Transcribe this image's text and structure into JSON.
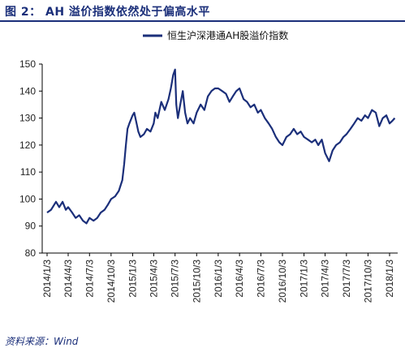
{
  "header": {
    "title": "图 2： AH 溢价指数依然处于偏高水平"
  },
  "footer": {
    "source": "资料来源：Wind"
  },
  "chart_data": {
    "type": "line",
    "title": "",
    "xlabel": "",
    "ylabel": "",
    "ylim": [
      80,
      150
    ],
    "yticks": [
      80,
      90,
      100,
      110,
      120,
      130,
      140,
      150
    ],
    "xticks": [
      "2014/1/3",
      "2014/4/3",
      "2014/7/3",
      "2014/10/3",
      "2015/1/3",
      "2015/4/3",
      "2015/7/3",
      "2015/10/3",
      "2016/1/3",
      "2016/4/3",
      "2016/7/3",
      "2016/10/3",
      "2017/1/3",
      "2017/4/3",
      "2017/7/3",
      "2017/10/3",
      "2018/1/3"
    ],
    "legend": "top-center",
    "grid": false,
    "colors": {
      "series": "#1b2f7a",
      "title": "#1b2f7a"
    },
    "series": [
      {
        "name": "恒生沪深港通AH股溢价指数",
        "x": [
          "2014/1/3",
          "2014/1/20",
          "2014/2/10",
          "2014/2/24",
          "2014/3/10",
          "2014/3/24",
          "2014/4/3",
          "2014/4/20",
          "2014/5/5",
          "2014/5/20",
          "2014/6/5",
          "2014/6/20",
          "2014/7/3",
          "2014/7/20",
          "2014/8/5",
          "2014/8/20",
          "2014/9/5",
          "2014/9/20",
          "2014/10/3",
          "2014/10/20",
          "2014/11/5",
          "2014/11/20",
          "2014/11/28",
          "2014/12/5",
          "2014/12/12",
          "2014/12/20",
          "2015/1/3",
          "2015/1/10",
          "2015/1/20",
          "2015/1/27",
          "2015/2/5",
          "2015/2/20",
          "2015/3/5",
          "2015/3/20",
          "2015/4/3",
          "2015/4/10",
          "2015/4/20",
          "2015/5/5",
          "2015/5/20",
          "2015/6/5",
          "2015/6/15",
          "2015/6/25",
          "2015/7/3",
          "2015/7/8",
          "2015/7/15",
          "2015/7/25",
          "2015/8/5",
          "2015/8/15",
          "2015/8/25",
          "2015/9/5",
          "2015/9/20",
          "2015/10/3",
          "2015/10/20",
          "2015/11/5",
          "2015/11/20",
          "2015/12/5",
          "2015/12/20",
          "2016/1/3",
          "2016/1/20",
          "2016/2/5",
          "2016/2/20",
          "2016/3/5",
          "2016/3/20",
          "2016/4/3",
          "2016/4/20",
          "2016/5/5",
          "2016/5/20",
          "2016/6/5",
          "2016/6/20",
          "2016/7/3",
          "2016/7/20",
          "2016/8/5",
          "2016/8/20",
          "2016/9/5",
          "2016/9/20",
          "2016/10/3",
          "2016/10/20",
          "2016/11/5",
          "2016/11/20",
          "2016/12/5",
          "2016/12/20",
          "2017/1/3",
          "2017/1/20",
          "2017/2/5",
          "2017/2/20",
          "2017/3/5",
          "2017/3/20",
          "2017/4/3",
          "2017/4/20",
          "2017/5/5",
          "2017/5/20",
          "2017/6/5",
          "2017/6/20",
          "2017/7/3",
          "2017/7/20",
          "2017/8/5",
          "2017/8/20",
          "2017/9/5",
          "2017/9/20",
          "2017/10/3",
          "2017/10/20",
          "2017/11/5",
          "2017/11/20",
          "2017/12/5",
          "2017/12/20",
          "2018/1/3",
          "2018/1/15",
          "2018/1/25"
        ],
        "values": [
          95,
          96,
          99,
          97,
          99,
          96,
          97,
          95,
          93,
          94,
          92,
          91,
          93,
          92,
          93,
          95,
          96,
          98,
          100,
          101,
          103,
          107,
          113,
          120,
          126,
          128,
          131,
          132,
          128,
          125,
          123,
          124,
          126,
          125,
          128,
          132,
          130,
          136,
          133,
          137,
          141,
          146,
          148,
          135,
          130,
          135,
          140,
          132,
          128,
          130,
          128,
          132,
          135,
          133,
          138,
          140,
          141,
          141,
          140,
          139,
          136,
          138,
          140,
          141,
          137,
          136,
          134,
          135,
          132,
          133,
          130,
          128,
          126,
          123,
          121,
          120,
          123,
          124,
          126,
          124,
          125,
          123,
          122,
          121,
          122,
          120,
          122,
          117,
          114,
          118,
          120,
          121,
          123,
          124,
          126,
          128,
          130,
          129,
          131,
          130,
          133,
          132,
          127,
          130,
          131,
          128,
          129,
          130
        ]
      }
    ]
  }
}
